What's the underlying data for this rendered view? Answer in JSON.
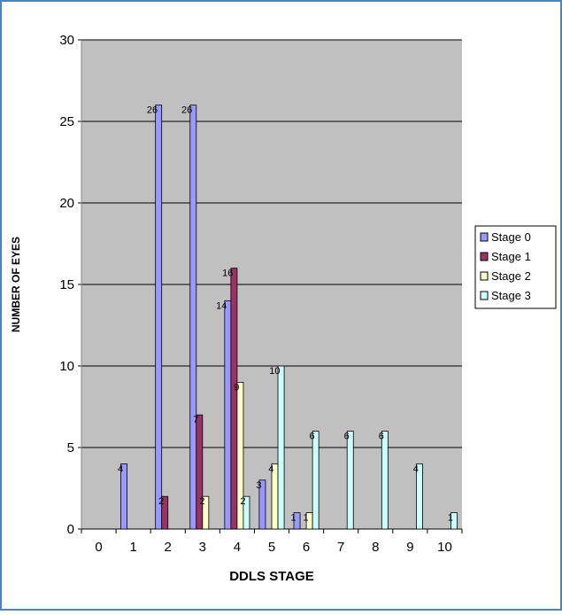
{
  "chart_data": {
    "type": "bar",
    "x_label": "DDLS STAGE",
    "y_label": "NUMBER OF EYES",
    "categories": [
      "0",
      "1",
      "2",
      "3",
      "4",
      "5",
      "6",
      "7",
      "8",
      "9",
      "10"
    ],
    "series": [
      {
        "name": "Stage 0",
        "color": "#9999ff",
        "values": [
          null,
          4,
          26,
          26,
          14,
          3,
          1,
          null,
          null,
          null,
          null
        ]
      },
      {
        "name": "Stage 1",
        "color": "#993366",
        "values": [
          null,
          null,
          2,
          7,
          16,
          null,
          null,
          null,
          null,
          null,
          null
        ]
      },
      {
        "name": "Stage 2",
        "color": "#ffffcc",
        "values": [
          null,
          null,
          null,
          2,
          9,
          4,
          1,
          null,
          null,
          null,
          null
        ]
      },
      {
        "name": "Stage 3",
        "color": "#ccffff",
        "values": [
          null,
          null,
          null,
          null,
          2,
          10,
          6,
          6,
          6,
          4,
          1
        ]
      }
    ],
    "ylim": [
      0,
      30
    ],
    "yticks": [
      0,
      5,
      10,
      15,
      20,
      25,
      30
    ],
    "grid": true,
    "legend": "right"
  }
}
